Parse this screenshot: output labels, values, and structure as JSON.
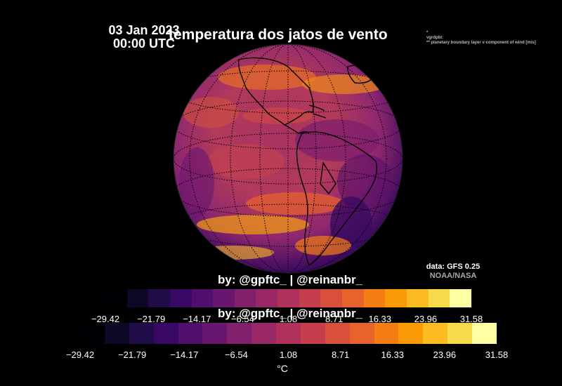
{
  "header": {
    "date": "03 Jan 2023",
    "time": "00:00 UTC",
    "title": "temperatura dos jatos de vento"
  },
  "metadata_lines": [
    "*",
    "vgrdpbl:",
    "** planetary boundary layer v-component of wind [m/s]"
  ],
  "credits": {
    "author_primary": "by: @gpftc_ | @reinanbr_",
    "author_secondary": "by: @gpftc_ | @reinanbr_",
    "data_source": "data: GFS 0.25",
    "data_agency": "NOAA/NASA"
  },
  "colorbar": {
    "unit": "°C",
    "ticks": [
      "−29.42",
      "−21.79",
      "−14.17",
      "−6.54",
      "1.08",
      "8.71",
      "16.33",
      "23.96",
      "31.58"
    ],
    "range": [
      -29.42,
      31.58
    ],
    "colormap": "inferno",
    "colors": [
      "#000004",
      "#0c0826",
      "#1f0c48",
      "#380962",
      "#510e6c",
      "#69166e",
      "#81206c",
      "#982766",
      "#b0315b",
      "#c63d4d",
      "#d8503a",
      "#e8632b",
      "#f47e14",
      "#fb9b06",
      "#fbbb21",
      "#f5db4b",
      "#fcffa4"
    ]
  },
  "map": {
    "projection": "orthographic",
    "region": "Americas",
    "graticule": "dotted"
  }
}
